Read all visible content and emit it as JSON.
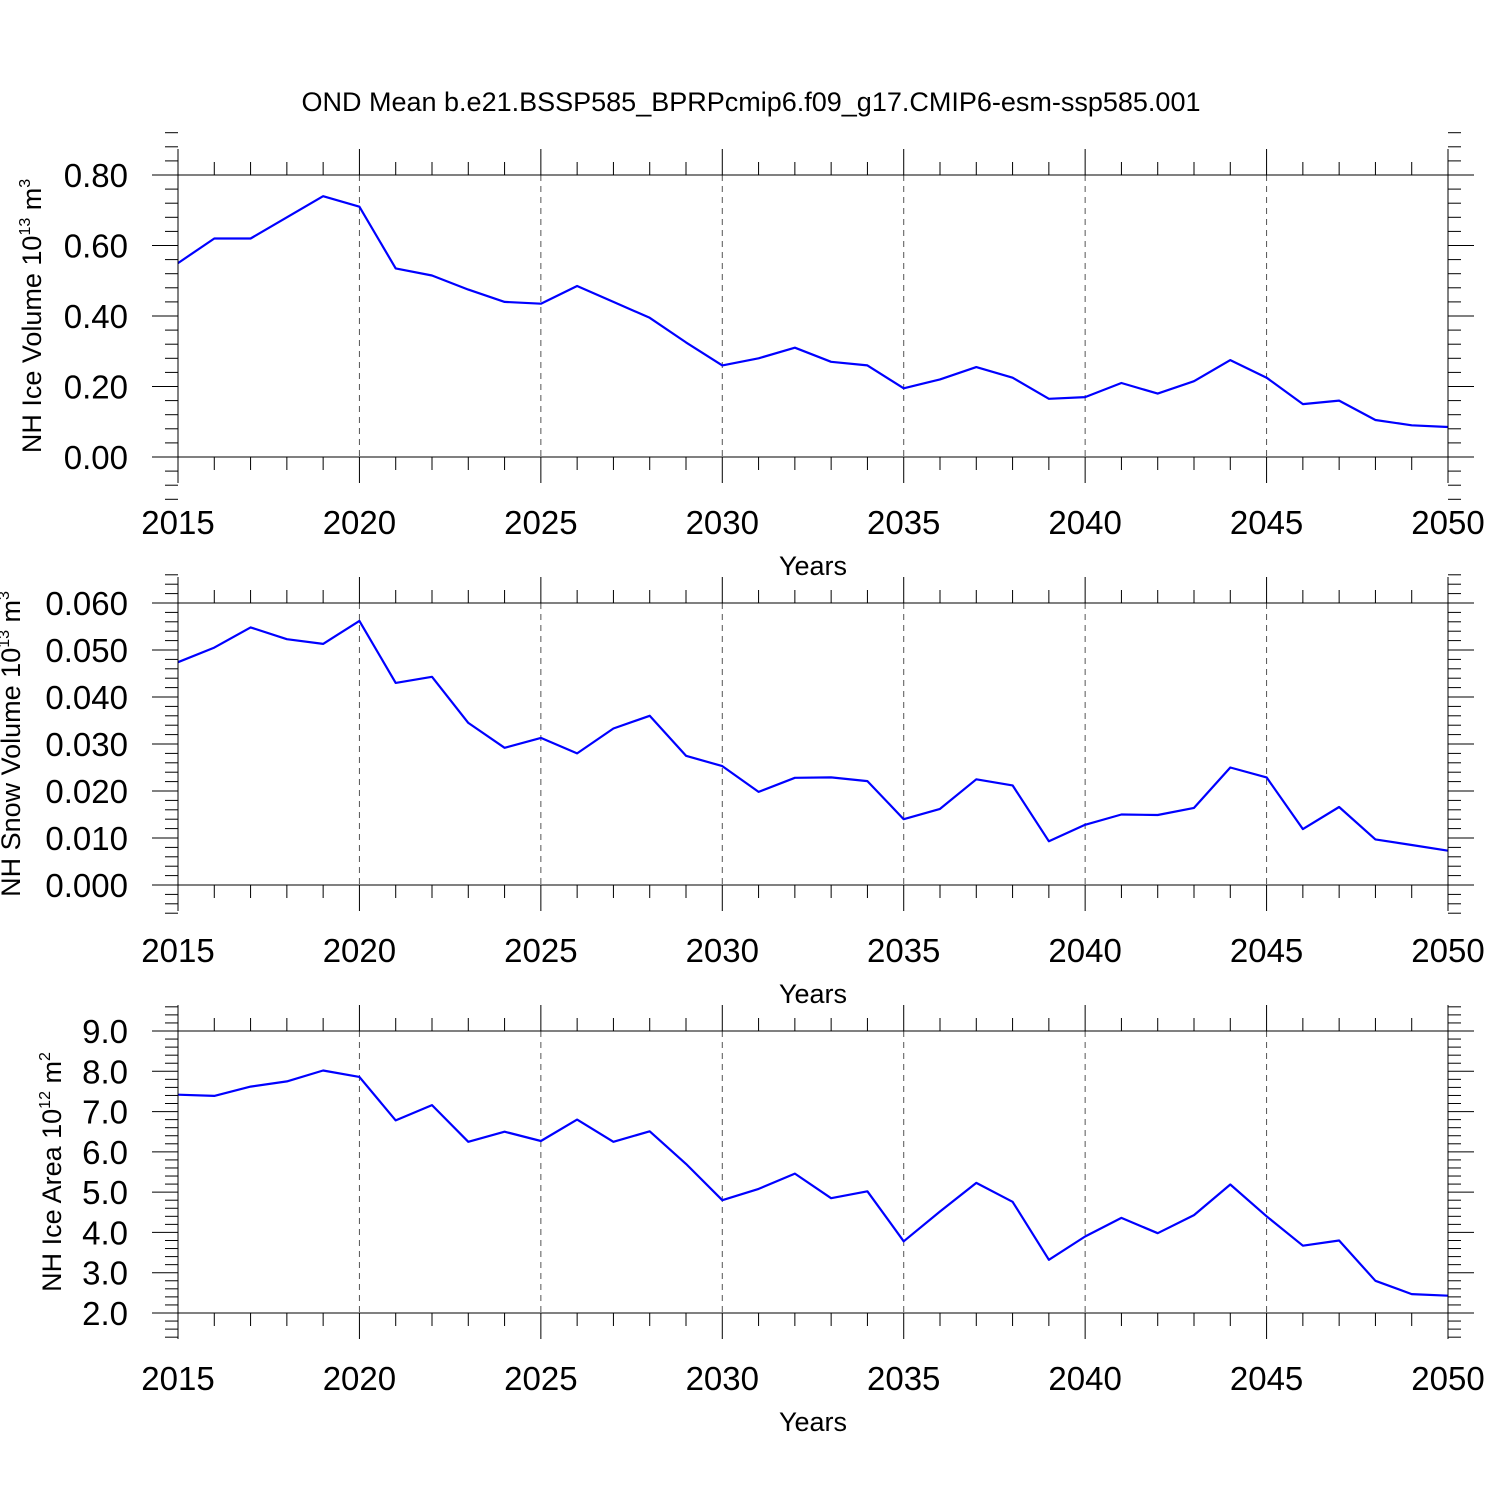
{
  "figure_title": "OND Mean b.e21.BSSP585_BPRPcmip6.f09_g17.CMIP6-esm-ssp585.001",
  "line_color": "#0000ff",
  "chart_data": [
    {
      "type": "line",
      "title": "OND Mean b.e21.BSSP585_BPRPcmip6.f09_g17.CMIP6-esm-ssp585.001",
      "xlabel": "Years",
      "ylabel_main": "NH Ice Volume 10",
      "ylabel_exp": "13",
      "ylabel_unit": " m",
      "ylabel_unit_exp": "3",
      "xlim": [
        2015,
        2050
      ],
      "ylim": [
        0.0,
        0.8
      ],
      "grid_x": [
        2020,
        2025,
        2030,
        2035,
        2040,
        2045
      ],
      "x_ticks": [
        "2015",
        "2020",
        "2025",
        "2030",
        "2035",
        "2040",
        "2045",
        "2050"
      ],
      "y_ticks": [
        "0.00",
        "0.20",
        "0.40",
        "0.60",
        "0.80"
      ],
      "x": [
        2015,
        2016,
        2017,
        2018,
        2019,
        2020,
        2021,
        2022,
        2023,
        2024,
        2025,
        2026,
        2027,
        2028,
        2029,
        2030,
        2031,
        2032,
        2033,
        2034,
        2035,
        2036,
        2037,
        2038,
        2039,
        2040,
        2041,
        2042,
        2043,
        2044,
        2045,
        2046,
        2047,
        2048,
        2049,
        2050
      ],
      "series": [
        {
          "name": "NH Ice Volume",
          "values": [
            0.55,
            0.62,
            0.62,
            0.68,
            0.74,
            0.71,
            0.535,
            0.515,
            0.475,
            0.44,
            0.435,
            0.485,
            0.44,
            0.395,
            0.325,
            0.26,
            0.28,
            0.31,
            0.27,
            0.26,
            0.195,
            0.22,
            0.255,
            0.225,
            0.165,
            0.17,
            0.21,
            0.18,
            0.215,
            0.275,
            0.225,
            0.15,
            0.16,
            0.105,
            0.09,
            0.085
          ]
        }
      ]
    },
    {
      "type": "line",
      "xlabel": "Years",
      "ylabel_main": "NH Snow Volume 10",
      "ylabel_exp": "13",
      "ylabel_unit": " m",
      "ylabel_unit_exp": "3",
      "xlim": [
        2015,
        2050
      ],
      "ylim": [
        0.0,
        0.06
      ],
      "grid_x": [
        2020,
        2025,
        2030,
        2035,
        2040,
        2045
      ],
      "x_ticks": [
        "2015",
        "2020",
        "2025",
        "2030",
        "2035",
        "2040",
        "2045",
        "2050"
      ],
      "y_ticks": [
        "0.000",
        "0.010",
        "0.020",
        "0.030",
        "0.040",
        "0.050",
        "0.060"
      ],
      "x": [
        2015,
        2016,
        2017,
        2018,
        2019,
        2020,
        2021,
        2022,
        2023,
        2024,
        2025,
        2026,
        2027,
        2028,
        2029,
        2030,
        2031,
        2032,
        2033,
        2034,
        2035,
        2036,
        2037,
        2038,
        2039,
        2040,
        2041,
        2042,
        2043,
        2044,
        2045,
        2046,
        2047,
        2048,
        2049,
        2050
      ],
      "series": [
        {
          "name": "NH Snow Volume",
          "values": [
            0.0474,
            0.0505,
            0.0548,
            0.0523,
            0.0513,
            0.0562,
            0.043,
            0.0443,
            0.0345,
            0.0292,
            0.0313,
            0.028,
            0.0333,
            0.036,
            0.0275,
            0.0253,
            0.0198,
            0.0228,
            0.0229,
            0.0221,
            0.014,
            0.0162,
            0.0225,
            0.0212,
            0.0093,
            0.0128,
            0.015,
            0.0149,
            0.0164,
            0.025,
            0.0229,
            0.0119,
            0.0166,
            0.0097,
            0.0085,
            0.0073
          ]
        }
      ]
    },
    {
      "type": "line",
      "xlabel": "Years",
      "ylabel_main": "NH Ice Area 10",
      "ylabel_exp": "12",
      "ylabel_unit": " m",
      "ylabel_unit_exp": "2",
      "xlim": [
        2015,
        2050
      ],
      "ylim": [
        2.0,
        9.0
      ],
      "grid_x": [
        2020,
        2025,
        2030,
        2035,
        2040,
        2045
      ],
      "x_ticks": [
        "2015",
        "2020",
        "2025",
        "2030",
        "2035",
        "2040",
        "2045",
        "2050"
      ],
      "y_ticks": [
        "2.0",
        "3.0",
        "4.0",
        "5.0",
        "6.0",
        "7.0",
        "8.0",
        "9.0"
      ],
      "x": [
        2015,
        2016,
        2017,
        2018,
        2019,
        2020,
        2021,
        2022,
        2023,
        2024,
        2025,
        2026,
        2027,
        2028,
        2029,
        2030,
        2031,
        2032,
        2033,
        2034,
        2035,
        2036,
        2037,
        2038,
        2039,
        2040,
        2041,
        2042,
        2043,
        2044,
        2045,
        2046,
        2047,
        2048,
        2049,
        2050
      ],
      "series": [
        {
          "name": "NH Ice Area",
          "values": [
            7.42,
            7.39,
            7.62,
            7.75,
            8.02,
            7.86,
            6.78,
            7.16,
            6.25,
            6.5,
            6.27,
            6.8,
            6.25,
            6.51,
            5.7,
            4.8,
            5.08,
            5.46,
            4.85,
            5.02,
            3.78,
            4.52,
            5.23,
            4.76,
            3.32,
            3.9,
            4.36,
            3.98,
            4.43,
            5.19,
            4.4,
            3.67,
            3.8,
            2.8,
            2.47,
            2.43
          ]
        }
      ]
    }
  ]
}
